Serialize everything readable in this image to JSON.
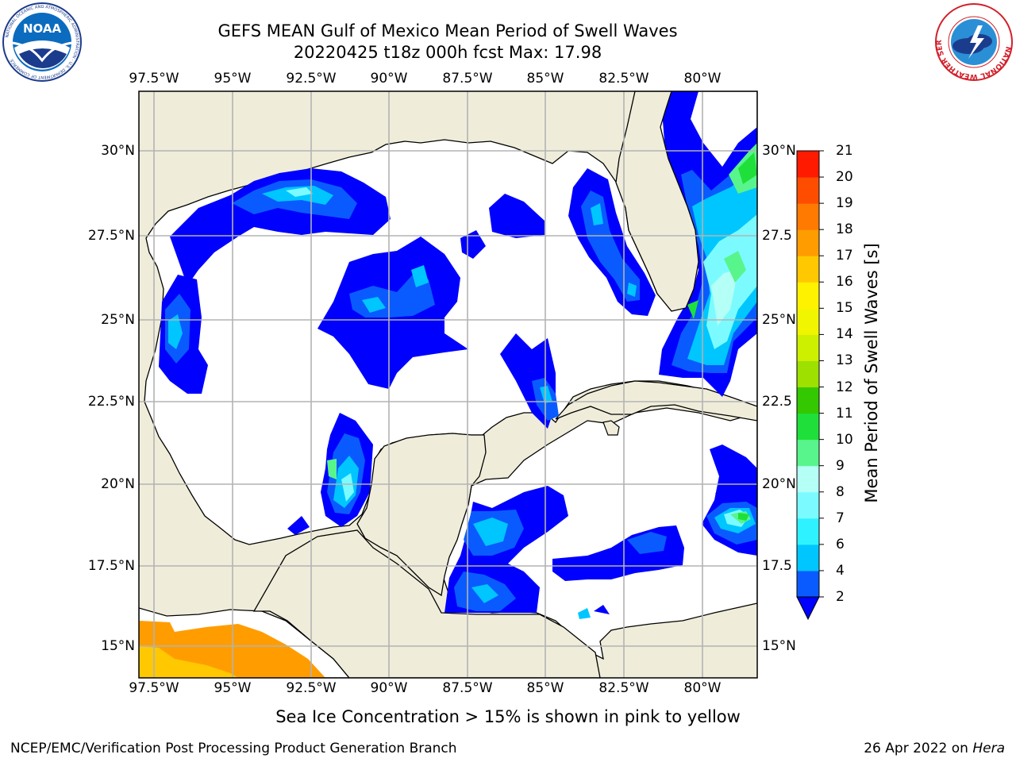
{
  "header": {
    "title_line1": "GEFS MEAN Gulf of Mexico Mean Period of Swell Waves",
    "title_line2": "20220425 t18z 000h fcst   Max: 17.98"
  },
  "logos": {
    "noaa_text": "NOAA",
    "noaa_ring_text": "NATIONAL OCEANIC AND ATMOSPHERIC ADMINISTRATION · U.S. DEPARTMENT OF COMMERCE",
    "nws_ring_text": "NATIONAL WEATHER SERVICE"
  },
  "map": {
    "projection": "lat-lon",
    "lon_range": [
      -98,
      -78.4
    ],
    "lat_range": [
      14,
      31.7
    ],
    "grid": true,
    "lon_ticks": [
      "97.5°W",
      "95°W",
      "92.5°W",
      "90°W",
      "87.5°W",
      "85°W",
      "82.5°W",
      "80°W"
    ],
    "lat_ticks_left": [
      "30°N",
      "27.5°N",
      "25°N",
      "22.5°N",
      "20°N",
      "17.5°N",
      "15°N"
    ],
    "lat_ticks_right": [
      "30°N",
      "27.5",
      "25°N",
      "22.5",
      "20°N",
      "17.5",
      "15°N"
    ],
    "colors": {
      "land": "#efedda",
      "ocean_no_swell": "#ffffff",
      "coast": "#000000",
      "grid": "#b0b0b0"
    }
  },
  "colorbar": {
    "label": "Mean Period of Swell Waves [s]",
    "tick_labels": [
      "2",
      "4",
      "6",
      "7",
      "8",
      "9",
      "10",
      "11",
      "12",
      "13",
      "14",
      "15",
      "16",
      "17",
      "18",
      "19",
      "20",
      "21"
    ],
    "levels": [
      2,
      4,
      6,
      7,
      8,
      9,
      10,
      11,
      12,
      13,
      14,
      15,
      16,
      17,
      18,
      19,
      20,
      21
    ],
    "colors": [
      "#0a5bff",
      "#00c6ff",
      "#2ef2ff",
      "#7bfbff",
      "#b4fff6",
      "#58f58c",
      "#1fe03a",
      "#33c800",
      "#9ee000",
      "#cdf000",
      "#f2f500",
      "#fff200",
      "#ffc800",
      "#ff9d00",
      "#ff7a00",
      "#ff4d00",
      "#ff1a00"
    ],
    "min_color": "#0000ff",
    "extend": "min"
  },
  "footer": {
    "sea_ice_note": "Sea Ice Concentration > 15% is shown in pink to yellow",
    "credit": "NCEP/EMC/Verification Post Processing Product Generation Branch",
    "date": "26 Apr 2022 on",
    "machine": "Hera"
  }
}
